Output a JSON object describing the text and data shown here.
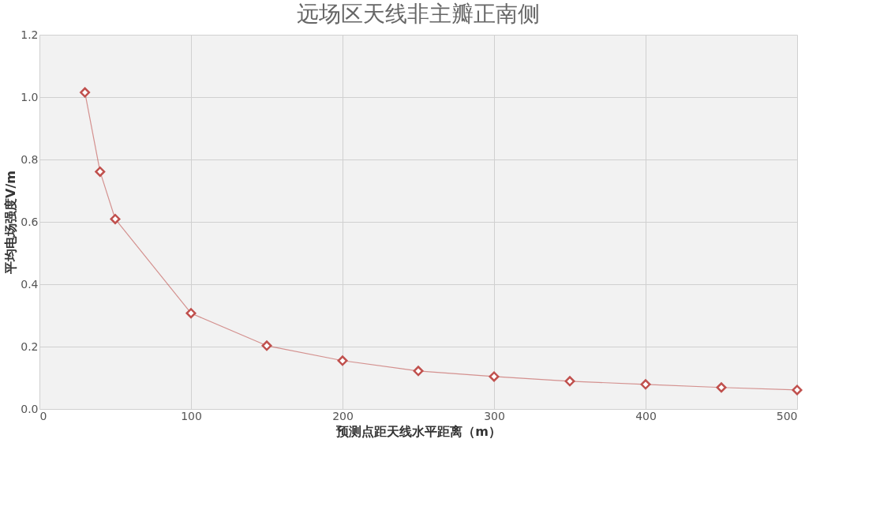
{
  "chart_data": {
    "type": "line",
    "title": "远场区天线非主瓣正南侧",
    "xlabel": "预测点距天线水平距离（m）",
    "ylabel": "平均电场强度V/m",
    "x": [
      30,
      40,
      50,
      100,
      150,
      200,
      250,
      300,
      350,
      400,
      450,
      500
    ],
    "series": [
      {
        "color": "#c0504d",
        "values": [
          1.015,
          0.761,
          0.609,
          0.307,
          0.203,
          0.155,
          0.122,
          0.104,
          0.089,
          0.079,
          0.069,
          0.061
        ]
      }
    ],
    "xlim": [
      0,
      500
    ],
    "xticks": [
      0,
      100,
      200,
      300,
      400,
      500
    ],
    "ylim": [
      0,
      1.2
    ],
    "yticks": [
      {
        "value": 0,
        "label": "0.0"
      },
      {
        "value": 0.2,
        "label": "0.2"
      },
      {
        "value": 0.4,
        "label": "0.4"
      },
      {
        "value": 0.6,
        "label": "0.6"
      },
      {
        "value": 0.8,
        "label": "0.8"
      },
      {
        "value": 1.0,
        "label": "1.0"
      },
      {
        "value": 1.2,
        "label": "1.2"
      }
    ],
    "grid": true,
    "marker": "diamond",
    "line_style": "solid"
  }
}
